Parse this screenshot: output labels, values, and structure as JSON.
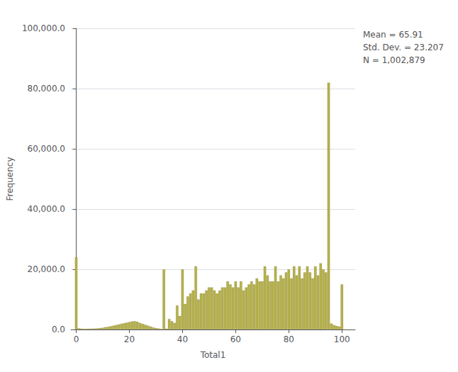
{
  "chart_data": {
    "type": "bar",
    "xlabel": "Total1",
    "ylabel": "Frequency",
    "x": [
      0,
      1,
      2,
      3,
      4,
      5,
      6,
      7,
      8,
      9,
      10,
      11,
      12,
      13,
      14,
      15,
      16,
      17,
      18,
      19,
      20,
      21,
      22,
      23,
      24,
      25,
      26,
      27,
      28,
      29,
      30,
      31,
      32,
      33,
      34,
      35,
      36,
      37,
      38,
      39,
      40,
      41,
      42,
      43,
      44,
      45,
      46,
      47,
      48,
      49,
      50,
      51,
      52,
      53,
      54,
      55,
      56,
      57,
      58,
      59,
      60,
      61,
      62,
      63,
      64,
      65,
      66,
      67,
      68,
      69,
      70,
      71,
      72,
      73,
      74,
      75,
      76,
      77,
      78,
      79,
      80,
      81,
      82,
      83,
      84,
      85,
      86,
      87,
      88,
      89,
      90,
      91,
      92,
      93,
      94,
      95,
      96,
      97,
      98,
      99,
      100
    ],
    "values": [
      24000,
      400,
      300,
      250,
      250,
      300,
      300,
      350,
      400,
      500,
      600,
      800,
      900,
      1100,
      1300,
      1500,
      1700,
      1900,
      2100,
      2300,
      2500,
      2700,
      2800,
      2600,
      2200,
      1900,
      1600,
      1300,
      1000,
      700,
      500,
      350,
      200,
      20000,
      300,
      3500,
      2800,
      2200,
      8000,
      4500,
      20000,
      8500,
      11000,
      12000,
      13000,
      21000,
      10000,
      12000,
      12000,
      13000,
      14000,
      14000,
      13000,
      12000,
      13000,
      14000,
      14000,
      16000,
      15000,
      14000,
      16000,
      14000,
      16000,
      13000,
      14000,
      15000,
      16000,
      15000,
      17000,
      16000,
      16000,
      21000,
      18000,
      16000,
      16000,
      21000,
      16000,
      18000,
      17000,
      19000,
      20000,
      17000,
      21000,
      18000,
      21000,
      17000,
      19000,
      21000,
      19000,
      17000,
      21000,
      18000,
      22000,
      20000,
      19000,
      82000,
      2000,
      1500,
      1200,
      1000,
      15000
    ],
    "color": "#b5b04a",
    "xlim": [
      -2,
      105
    ],
    "xticks": [
      0,
      20,
      40,
      60,
      80,
      100
    ],
    "ylim": [
      0,
      100000
    ],
    "yticks": [
      {
        "value": 0,
        "label": "0.0"
      },
      {
        "value": 20000,
        "label": "20,000.0"
      },
      {
        "value": 40000,
        "label": "40,000.0"
      },
      {
        "value": 60000,
        "label": "60,000.0"
      },
      {
        "value": 80000,
        "label": "80,000.0"
      },
      {
        "value": 100000,
        "label": "100,000.0"
      }
    ],
    "grid": true,
    "annotations": [
      "Mean = 65.91",
      "Std. Dev. = 23.207",
      "N = 1,002,879"
    ]
  }
}
